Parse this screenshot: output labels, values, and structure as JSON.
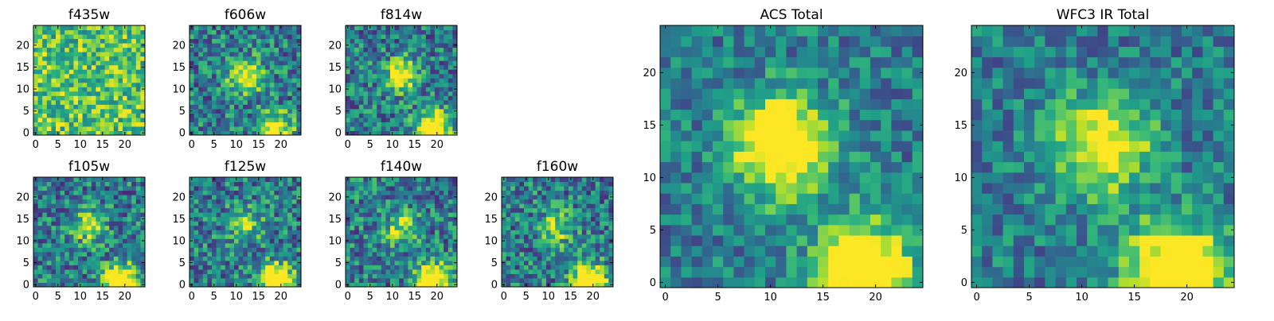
{
  "figure": {
    "panels": [
      {
        "id": "f435w",
        "title": "f435w",
        "xticks": [
          "0",
          "5",
          "10",
          "15",
          "20"
        ],
        "yticks": [
          "0",
          "5",
          "10",
          "15",
          "20"
        ]
      },
      {
        "id": "f606w",
        "title": "f606w",
        "xticks": [
          "0",
          "5",
          "10",
          "15",
          "20"
        ],
        "yticks": [
          "0",
          "5",
          "10",
          "15",
          "20"
        ]
      },
      {
        "id": "f814w",
        "title": "f814w",
        "xticks": [
          "0",
          "5",
          "10",
          "15",
          "20"
        ],
        "yticks": [
          "0",
          "5",
          "10",
          "15",
          "20"
        ]
      },
      {
        "id": "f105w",
        "title": "f105w",
        "xticks": [
          "0",
          "5",
          "10",
          "15",
          "20"
        ],
        "yticks": [
          "0",
          "5",
          "10",
          "15",
          "20"
        ]
      },
      {
        "id": "f125w",
        "title": "f125w",
        "xticks": [
          "0",
          "5",
          "10",
          "15",
          "20"
        ],
        "yticks": [
          "0",
          "5",
          "10",
          "15",
          "20"
        ]
      },
      {
        "id": "f140w",
        "title": "f140w",
        "xticks": [
          "0",
          "5",
          "10",
          "15",
          "20"
        ],
        "yticks": [
          "0",
          "5",
          "10",
          "15",
          "20"
        ]
      },
      {
        "id": "f160w",
        "title": "f160w",
        "xticks": [
          "0",
          "5",
          "10",
          "15",
          "20"
        ],
        "yticks": [
          "0",
          "5",
          "10",
          "15",
          "20"
        ]
      },
      {
        "id": "acs-total",
        "title": "ACS Total",
        "xticks": [
          "0",
          "5",
          "10",
          "15",
          "20"
        ],
        "yticks": [
          "0",
          "5",
          "10",
          "15",
          "20"
        ]
      },
      {
        "id": "wfc3-ir-total",
        "title": "WFC3 IR Total",
        "xticks": [
          "0",
          "5",
          "10",
          "15",
          "20"
        ],
        "yticks": [
          "0",
          "5",
          "10",
          "15",
          "20"
        ]
      }
    ]
  },
  "chart_data": [
    {
      "type": "heatmap",
      "title": "f435w",
      "colormap": "viridis",
      "grid": "25x25",
      "xlim": [
        0,
        24
      ],
      "ylim": [
        0,
        24
      ],
      "sources": [],
      "noise": 0.28,
      "base": 0.72
    },
    {
      "type": "heatmap",
      "title": "f606w",
      "colormap": "viridis",
      "grid": "25x25",
      "xlim": [
        0,
        24
      ],
      "ylim": [
        0,
        24
      ],
      "sources": [
        {
          "x": 12,
          "y": 13,
          "peak": "bright"
        },
        {
          "x": 19,
          "y": 1,
          "peak": "bright"
        }
      ]
    },
    {
      "type": "heatmap",
      "title": "f814w",
      "colormap": "viridis",
      "grid": "25x25",
      "xlim": [
        0,
        24
      ],
      "ylim": [
        0,
        24
      ],
      "sources": [
        {
          "x": 12,
          "y": 13,
          "peak": "bright"
        },
        {
          "x": 19,
          "y": 1,
          "peak": "saturated"
        }
      ]
    },
    {
      "type": "heatmap",
      "title": "f105w",
      "colormap": "viridis",
      "grid": "25x25",
      "xlim": [
        0,
        24
      ],
      "ylim": [
        0,
        24
      ],
      "sources": [
        {
          "x": 12,
          "y": 13,
          "peak": "moderate"
        },
        {
          "x": 19,
          "y": 1,
          "peak": "saturated"
        }
      ]
    },
    {
      "type": "heatmap",
      "title": "f125w",
      "colormap": "viridis",
      "grid": "25x25",
      "xlim": [
        0,
        24
      ],
      "ylim": [
        0,
        24
      ],
      "sources": [
        {
          "x": 12,
          "y": 14,
          "peak": "moderate"
        },
        {
          "x": 19,
          "y": 1,
          "peak": "saturated"
        }
      ]
    },
    {
      "type": "heatmap",
      "title": "f140w",
      "colormap": "viridis",
      "grid": "25x25",
      "xlim": [
        0,
        24
      ],
      "ylim": [
        0,
        24
      ],
      "sources": [
        {
          "x": 12,
          "y": 13,
          "peak": "moderate"
        },
        {
          "x": 19,
          "y": 1,
          "peak": "saturated"
        }
      ]
    },
    {
      "type": "heatmap",
      "title": "f160w",
      "colormap": "viridis",
      "grid": "25x25",
      "xlim": [
        0,
        24
      ],
      "ylim": [
        0,
        24
      ],
      "sources": [
        {
          "x": 12,
          "y": 13,
          "peak": "moderate"
        },
        {
          "x": 19,
          "y": 1,
          "peak": "saturated"
        }
      ]
    },
    {
      "type": "heatmap",
      "title": "ACS Total",
      "colormap": "viridis",
      "grid": "25x25",
      "xlim": [
        0,
        24
      ],
      "ylim": [
        0,
        24
      ],
      "sources": [
        {
          "x": 11,
          "y": 13,
          "peak": "saturated"
        },
        {
          "x": 19,
          "y": 1,
          "peak": "saturated"
        }
      ]
    },
    {
      "type": "heatmap",
      "title": "WFC3 IR Total",
      "colormap": "viridis",
      "grid": "25x25",
      "xlim": [
        0,
        24
      ],
      "ylim": [
        0,
        24
      ],
      "sources": [
        {
          "x": 12,
          "y": 13,
          "peak": "bright"
        },
        {
          "x": 19,
          "y": 1,
          "peak": "saturated"
        }
      ]
    }
  ]
}
